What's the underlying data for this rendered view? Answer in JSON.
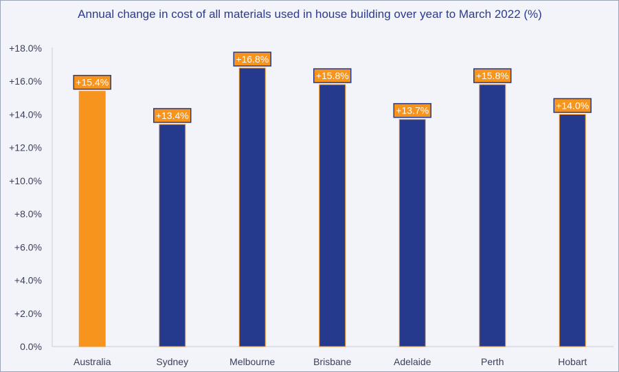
{
  "chart_data": {
    "type": "bar",
    "title": "Annual change in cost of all materials used in house building over year to March 2022 (%)",
    "xlabel": "",
    "ylabel": "",
    "categories": [
      "Australia",
      "Sydney",
      "Melbourne",
      "Brisbane",
      "Adelaide",
      "Perth",
      "Hobart"
    ],
    "values": [
      15.4,
      13.4,
      16.8,
      15.8,
      13.7,
      15.8,
      14.0
    ],
    "data_labels": [
      "+15.4%",
      "+13.4%",
      "+16.8%",
      "+15.8%",
      "+13.7%",
      "+15.8%",
      "+14.0%"
    ],
    "ylim": [
      0,
      18
    ],
    "yticks": [
      0,
      2,
      4,
      6,
      8,
      10,
      12,
      14,
      16,
      18
    ],
    "ytick_labels": [
      "0.0%",
      "+2.0%",
      "+4.0%",
      "+6.0%",
      "+8.0%",
      "+10.0%",
      "+12.0%",
      "+14.0%",
      "+16.0%",
      "+18.0%"
    ],
    "grid": false,
    "legend": "none",
    "colors": {
      "highlight_bar": "#f7941d",
      "bar": "#253a8c",
      "bar_outline": "#f7941d",
      "label_box_fill": "#f7941d",
      "label_box_border": "#253a8c",
      "title": "#2a3a8f"
    }
  }
}
